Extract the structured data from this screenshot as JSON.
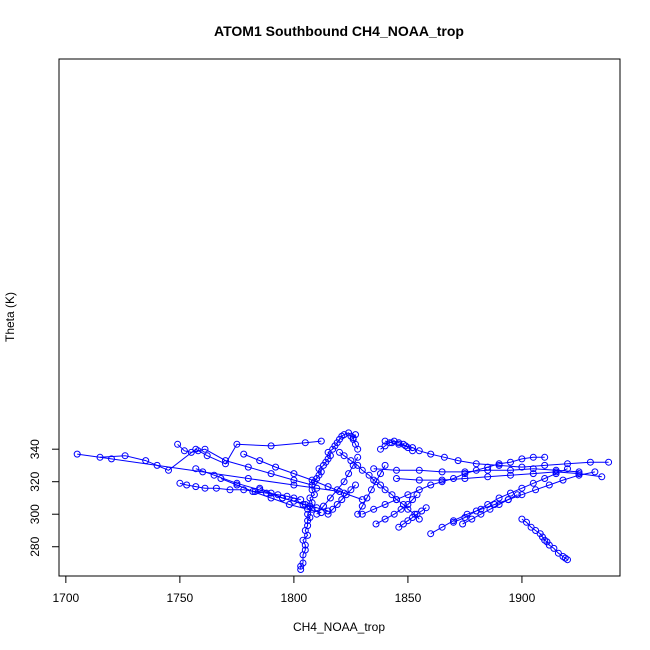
{
  "chart_data": {
    "type": "line",
    "title": "ATOM1 Southbound CH4_NOAA_trop",
    "xlabel": "CH4_NOAA_trop",
    "ylabel": "Theta (K)",
    "xlim": [
      1697,
      1943
    ],
    "ylim": [
      262,
      580
    ],
    "x_ticks": [
      1700,
      1750,
      1800,
      1850,
      1900
    ],
    "y_ticks": [
      280,
      300,
      320,
      340
    ],
    "grid": false,
    "legend": "none",
    "series_color": "#0000ff",
    "marker": "open-circle",
    "series": [
      {
        "x": [
          1803,
          1803,
          1804,
          1804,
          1805,
          1805,
          1804,
          1806,
          1805,
          1806,
          1806,
          1807,
          1806,
          1808,
          1807,
          1808,
          1807,
          1809,
          1808,
          1808,
          1809,
          1810,
          1811,
          1812,
          1811,
          1813,
          1814,
          1815,
          1816,
          1815,
          1817,
          1818,
          1819,
          1820,
          1821,
          1822,
          1824,
          1825,
          1826,
          1827,
          1826,
          1827,
          1828
        ],
        "y": [
          266,
          268,
          270,
          275,
          278,
          281,
          284,
          287,
          290,
          293,
          296,
          298,
          300,
          303,
          305,
          307,
          310,
          312,
          315,
          318,
          320,
          322,
          324,
          326,
          328,
          330,
          332,
          334,
          336,
          338,
          340,
          342,
          344,
          346,
          348,
          349,
          350,
          348,
          347,
          349,
          346,
          343,
          340
        ]
      },
      {
        "x": [
          1820,
          1822,
          1825,
          1828,
          1830,
          1833,
          1835,
          1838,
          1840,
          1843,
          1845,
          1848,
          1850,
          1853,
          1855
        ],
        "y": [
          338,
          336,
          333,
          330,
          327,
          324,
          321,
          318,
          315,
          312,
          309,
          306,
          303,
          300,
          297
        ]
      },
      {
        "x": [
          1705,
          1720,
          1740,
          1760,
          1780,
          1800,
          1810,
          1820
        ],
        "y": [
          337,
          334,
          330,
          326,
          322,
          318,
          316,
          314
        ]
      },
      {
        "x": [
          1715,
          1726,
          1735,
          1745,
          1757,
          1762,
          1770,
          1775,
          1790,
          1805,
          1812
        ],
        "y": [
          335,
          336,
          333,
          327,
          340,
          336,
          331,
          343,
          342,
          344,
          345
        ]
      },
      {
        "x": [
          1749,
          1752,
          1755,
          1758,
          1761,
          1770,
          1780,
          1790,
          1800,
          1808
        ],
        "y": [
          343,
          339,
          338,
          339,
          340,
          333,
          329,
          325,
          321,
          318
        ]
      },
      {
        "x": [
          1750,
          1753,
          1757,
          1761,
          1766,
          1772,
          1778,
          1783,
          1788,
          1793,
          1797,
          1800,
          1803
        ],
        "y": [
          319,
          318,
          317,
          316,
          316,
          315,
          315,
          314,
          313,
          312,
          311,
          310,
          309
        ]
      },
      {
        "x": [
          1785,
          1790,
          1795,
          1800,
          1804,
          1807,
          1810
        ],
        "y": [
          316,
          313,
          310,
          308,
          306,
          305,
          304
        ]
      },
      {
        "x": [
          1840,
          1843,
          1846,
          1849,
          1852,
          1855,
          1860,
          1866,
          1872,
          1880,
          1890,
          1900,
          1910,
          1920,
          1930,
          1938
        ],
        "y": [
          345,
          344,
          343,
          342,
          341,
          339,
          337,
          335,
          333,
          331,
          330,
          329,
          330,
          331,
          332,
          332
        ]
      },
      {
        "x": [
          1835,
          1845,
          1855,
          1865,
          1875,
          1885,
          1895,
          1905,
          1915,
          1925
        ],
        "y": [
          328,
          327,
          327,
          326,
          326,
          327,
          327,
          328,
          327,
          326
        ]
      },
      {
        "x": [
          1845,
          1855,
          1865,
          1875,
          1885,
          1895,
          1905,
          1915,
          1925,
          1935
        ],
        "y": [
          322,
          321,
          321,
          322,
          323,
          324,
          325,
          326,
          325,
          323
        ]
      },
      {
        "x": [
          1860,
          1865,
          1870,
          1876,
          1882,
          1888,
          1894,
          1900,
          1906,
          1912,
          1918,
          1925,
          1932
        ],
        "y": [
          288,
          292,
          296,
          300,
          303,
          306,
          309,
          312,
          315,
          318,
          321,
          324,
          326
        ]
      },
      {
        "x": [
          1900,
          1902,
          1904,
          1906,
          1908,
          1909,
          1910,
          1911,
          1912,
          1914,
          1916,
          1918,
          1919,
          1920
        ],
        "y": [
          297,
          295,
          292,
          290,
          288,
          286,
          284,
          283,
          281,
          279,
          276,
          274,
          273,
          272
        ]
      },
      {
        "x": [
          1830,
          1835,
          1840,
          1845,
          1850,
          1855,
          1860,
          1865,
          1870,
          1875,
          1880,
          1885,
          1890,
          1895,
          1900,
          1905,
          1910
        ],
        "y": [
          300,
          303,
          306,
          309,
          312,
          315,
          318,
          320,
          322,
          325,
          327,
          329,
          331,
          332,
          334,
          335,
          335
        ]
      },
      {
        "x": [
          1870,
          1875,
          1880,
          1885,
          1890,
          1895,
          1900,
          1905,
          1910,
          1915,
          1920
        ],
        "y": [
          295,
          298,
          302,
          306,
          310,
          313,
          316,
          319,
          322,
          325,
          328
        ]
      },
      {
        "x": [
          1836,
          1840,
          1844,
          1847,
          1850,
          1852,
          1854
        ],
        "y": [
          294,
          297,
          300,
          303,
          306,
          309,
          312
        ]
      },
      {
        "x": [
          1846,
          1848,
          1850,
          1852,
          1854,
          1856,
          1858
        ],
        "y": [
          292,
          294,
          296,
          298,
          300,
          302,
          304
        ]
      },
      {
        "x": [
          1874,
          1878,
          1882,
          1886,
          1890,
          1894,
          1898
        ],
        "y": [
          294,
          297,
          300,
          303,
          306,
          309,
          312
        ]
      },
      {
        "x": [
          1828,
          1830,
          1832,
          1834,
          1836,
          1838,
          1840
        ],
        "y": [
          300,
          305,
          310,
          315,
          320,
          325,
          330
        ]
      },
      {
        "x": [
          1838,
          1840,
          1842,
          1844,
          1846,
          1848,
          1850,
          1852
        ],
        "y": [
          340,
          342,
          344,
          345,
          344,
          343,
          341,
          339
        ]
      },
      {
        "x": [
          1810,
          1813,
          1816,
          1819,
          1822,
          1824,
          1826,
          1828
        ],
        "y": [
          300,
          305,
          310,
          315,
          320,
          325,
          330,
          335
        ]
      },
      {
        "x": [
          1815,
          1817,
          1819,
          1821,
          1823,
          1825,
          1827
        ],
        "y": [
          300,
          303,
          306,
          309,
          312,
          315,
          318
        ]
      },
      {
        "x": [
          1768,
          1775,
          1782,
          1790,
          1798,
          1806,
          1812
        ],
        "y": [
          322,
          318,
          314,
          310,
          306,
          303,
          301
        ]
      },
      {
        "x": [
          1778,
          1785,
          1792,
          1800,
          1808,
          1815,
          1822,
          1830
        ],
        "y": [
          337,
          333,
          329,
          325,
          321,
          317,
          313,
          309
        ]
      },
      {
        "x": [
          1757,
          1765,
          1775,
          1785,
          1795,
          1805,
          1815
        ],
        "y": [
          328,
          324,
          319,
          315,
          310,
          306,
          302
        ]
      }
    ]
  }
}
